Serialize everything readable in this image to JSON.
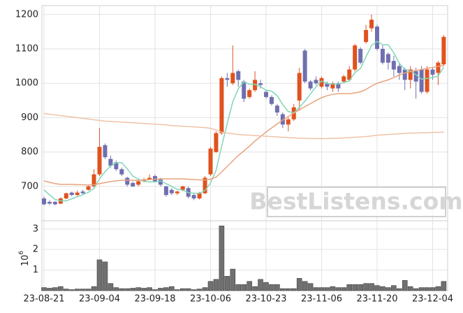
{
  "chart_data": [
    {
      "type": "candlestick",
      "up_color": "#e0521e",
      "down_color": "#6f6fb0",
      "open": [
        665,
        655,
        655,
        650,
        665,
        682,
        675,
        685,
        690,
        700,
        735,
        820,
        780,
        770,
        750,
        725,
        710,
        705,
        715,
        720,
        730,
        720,
        700,
        690,
        680,
        690,
        695,
        675,
        665,
        680,
        735,
        800,
        855,
        1015,
        1000,
        1035,
        1005,
        960,
        980,
        1000,
        975,
        960,
        935,
        910,
        880,
        895,
        950,
        1095,
        1005,
        1010,
        990,
        1000,
        985,
        1000,
        1005,
        1010,
        1040,
        1100,
        1120,
        1160,
        1165,
        1100,
        1085,
        1065,
        1050,
        1040,
        1010,
        1035,
        1040,
        975,
        1040,
        1030,
        1055
      ],
      "high": [
        670,
        660,
        658,
        668,
        682,
        685,
        688,
        690,
        705,
        750,
        870,
        825,
        790,
        775,
        755,
        728,
        714,
        718,
        725,
        735,
        735,
        725,
        702,
        695,
        688,
        702,
        700,
        678,
        684,
        730,
        815,
        860,
        1020,
        1030,
        1110,
        1040,
        1010,
        985,
        1035,
        1010,
        980,
        965,
        940,
        915,
        900,
        940,
        1045,
        1100,
        1010,
        1020,
        1020,
        1005,
        1005,
        1005,
        1025,
        1050,
        1115,
        1105,
        1170,
        1200,
        1170,
        1110,
        1090,
        1080,
        1060,
        1045,
        1050,
        1045,
        1050,
        1050,
        1045,
        1065,
        1140
      ],
      "low": [
        645,
        646,
        645,
        648,
        663,
        672,
        672,
        678,
        688,
        698,
        730,
        780,
        755,
        745,
        730,
        700,
        698,
        700,
        712,
        718,
        712,
        700,
        670,
        675,
        675,
        686,
        665,
        660,
        662,
        678,
        730,
        798,
        850,
        990,
        995,
        990,
        945,
        955,
        975,
        985,
        955,
        935,
        905,
        870,
        860,
        890,
        920,
        1000,
        980,
        995,
        985,
        980,
        975,
        975,
        1000,
        1005,
        1035,
        1055,
        1115,
        1150,
        1095,
        1055,
        1040,
        1020,
        1010,
        980,
        985,
        955,
        970,
        970,
        1010,
        995,
        1050
      ],
      "close": [
        648,
        650,
        648,
        665,
        680,
        675,
        682,
        680,
        700,
        735,
        815,
        785,
        760,
        750,
        735,
        705,
        700,
        715,
        720,
        725,
        715,
        705,
        675,
        680,
        685,
        700,
        670,
        665,
        680,
        725,
        810,
        855,
        1015,
        1010,
        1030,
        1010,
        955,
        980,
        1010,
        995,
        960,
        940,
        915,
        880,
        895,
        930,
        1030,
        1005,
        985,
        1000,
        1015,
        990,
        1000,
        985,
        1020,
        1040,
        1110,
        1060,
        1155,
        1185,
        1100,
        1060,
        1060,
        1040,
        1030,
        1010,
        1040,
        1005,
        975,
        1040,
        1025,
        1060,
        1135
      ],
      "lines": [
        {
          "color": "#7fd6b8",
          "values": [
            690,
            675,
            662,
            658,
            658,
            664,
            670,
            676,
            683,
            694,
            722,
            743,
            759,
            769,
            769,
            751,
            730,
            721,
            715,
            713,
            713,
            716,
            708,
            700,
            692,
            689,
            682,
            680,
            680,
            688,
            710,
            747,
            817,
            883,
            946,
            984,
            1004,
            997,
            997,
            990,
            980,
            977,
            964,
            938,
            918,
            914,
            930,
            948,
            969,
            990,
            1007,
            999,
            998,
            998,
            1002,
            1007,
            1031,
            1043,
            1077,
            1110,
            1122,
            1112,
            1112,
            1089,
            1058,
            1040,
            1036,
            1025,
            1012,
            1014,
            1017,
            1021,
            1047
          ]
        },
        {
          "color": "#e8a27c",
          "values": [
            716,
            712,
            708,
            706,
            706,
            706,
            705,
            705,
            704,
            705,
            708,
            711,
            714,
            716,
            718,
            718,
            718,
            718,
            719,
            720,
            721,
            722,
            722,
            722,
            722,
            722,
            721,
            720,
            719,
            719,
            721,
            727,
            742,
            758,
            774,
            790,
            803,
            817,
            832,
            845,
            858,
            870,
            882,
            893,
            903,
            913,
            923,
            932,
            941,
            950,
            958,
            964,
            968,
            970,
            970,
            970,
            972,
            975,
            982,
            992,
            1000,
            1005,
            1010,
            1017,
            1024,
            1030,
            1034,
            1037,
            1040,
            1043,
            1046,
            1049,
            1052
          ]
        },
        {
          "color": "#f0c2a8",
          "values": [
            912,
            910,
            908,
            906,
            904,
            902,
            900,
            898,
            896,
            894,
            892,
            890,
            889,
            888,
            887,
            886,
            885,
            884,
            883,
            882,
            881,
            880,
            879,
            877,
            876,
            875,
            874,
            873,
            872,
            871,
            869,
            864,
            858,
            855,
            853,
            851,
            850,
            849,
            848,
            847,
            846,
            845,
            844,
            843,
            842,
            841,
            840,
            840,
            839,
            839,
            839,
            839,
            840,
            840,
            841,
            842,
            843,
            844,
            845,
            847,
            849,
            850,
            851,
            852,
            853,
            854,
            855,
            855,
            856,
            856,
            857,
            857,
            858
          ]
        }
      ],
      "ylim": [
        600,
        1226
      ],
      "yticks": [
        700,
        800,
        900,
        1000,
        1100,
        1200
      ],
      "grid": true,
      "watermark": "BestListens.com"
    },
    {
      "type": "bar",
      "color": "#707070",
      "categories": [
        "23-08-21",
        null,
        null,
        null,
        null,
        null,
        null,
        null,
        null,
        null,
        "23-09-04",
        null,
        null,
        null,
        null,
        null,
        null,
        null,
        null,
        null,
        "23-09-18",
        null,
        null,
        null,
        null,
        null,
        null,
        null,
        null,
        null,
        "23-10-06",
        null,
        null,
        null,
        null,
        null,
        null,
        null,
        null,
        null,
        "23-10-23",
        null,
        null,
        null,
        null,
        null,
        null,
        null,
        null,
        null,
        "23-11-06",
        null,
        null,
        null,
        null,
        null,
        null,
        null,
        null,
        null,
        "23-11-20",
        null,
        null,
        null,
        null,
        null,
        null,
        null,
        null,
        null,
        "23-12-04",
        null,
        null
      ],
      "values": [
        0.15,
        0.12,
        0.15,
        0.2,
        0.08,
        0.05,
        0.08,
        0.08,
        0.08,
        0.2,
        1.5,
        1.4,
        0.35,
        0.15,
        0.1,
        0.1,
        0.12,
        0.15,
        0.12,
        0.15,
        0.05,
        0.12,
        0.15,
        0.2,
        0.05,
        0.1,
        0.1,
        0.05,
        0.08,
        0.15,
        0.45,
        0.55,
        3.15,
        0.7,
        1.05,
        0.3,
        0.3,
        0.45,
        0.2,
        0.55,
        0.4,
        0.3,
        0.3,
        0.1,
        0.1,
        0.1,
        0.6,
        0.45,
        0.35,
        0.15,
        0.15,
        0.15,
        0.2,
        0.15,
        0.15,
        0.3,
        0.3,
        0.3,
        0.35,
        0.35,
        0.25,
        0.2,
        0.15,
        0.25,
        0.1,
        0.5,
        0.2,
        0.1,
        0.15,
        0.15,
        0.15,
        0.2,
        0.45
      ],
      "ylim": [
        0,
        3.4
      ],
      "yticks": [
        1,
        2,
        3
      ],
      "grid": true,
      "y_label_base": "10",
      "y_label_exponent": "6"
    }
  ]
}
